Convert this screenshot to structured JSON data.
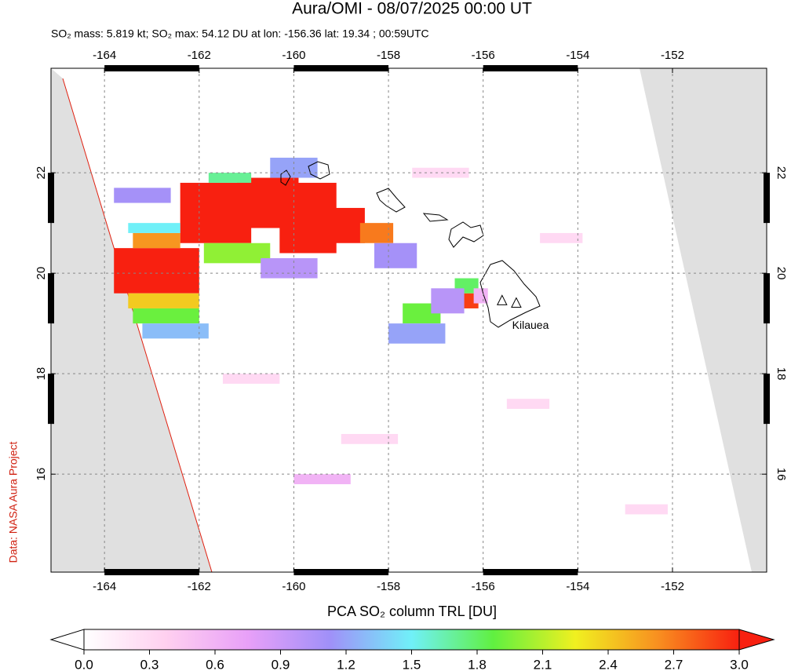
{
  "title": "Aura/OMI - 08/07/2025 00:00 UT",
  "subtitle": "SO₂ mass: 5.819 kt; SO₂ max: 54.12 DU at lon: -156.36 lat: 19.34 ; 00:59UTC",
  "credit": "Data: NASA Aura Project",
  "map": {
    "xlim": [
      -165.13,
      -150.01
    ],
    "ylim": [
      14.05,
      24.08
    ],
    "xticks": [
      -164,
      -162,
      -160,
      -158,
      -156,
      -154,
      -152
    ],
    "yticks": [
      16,
      18,
      20,
      22
    ],
    "grid": true,
    "annotation": {
      "text": "Kilauea",
      "lon": -155.0,
      "lat": 18.95
    },
    "volcanoes": [
      {
        "lon": -155.6,
        "lat": 19.45
      },
      {
        "lon": -155.3,
        "lat": 19.4
      }
    ],
    "cells": [
      [
        -163.8,
        -162.0,
        19.6,
        20.5,
        3.0
      ],
      [
        -162.4,
        -160.9,
        20.6,
        21.8,
        3.0
      ],
      [
        -161.2,
        -159.9,
        20.9,
        21.9,
        3.0
      ],
      [
        -160.3,
        -159.1,
        20.4,
        21.8,
        3.0
      ],
      [
        -159.4,
        -158.5,
        20.6,
        21.3,
        3.0
      ],
      [
        -163.5,
        -162.0,
        19.3,
        19.6,
        2.4
      ],
      [
        -163.4,
        -162.0,
        19.0,
        19.3,
        1.9
      ],
      [
        -163.2,
        -161.8,
        18.7,
        19.0,
        1.3
      ],
      [
        -163.4,
        -162.4,
        20.5,
        20.8,
        2.6
      ],
      [
        -163.5,
        -162.4,
        20.8,
        21.0,
        1.5
      ],
      [
        -161.9,
        -160.5,
        20.2,
        20.6,
        2.0
      ],
      [
        -160.7,
        -159.5,
        19.9,
        20.3,
        1.0
      ],
      [
        -158.6,
        -157.9,
        20.6,
        21.0,
        2.7
      ],
      [
        -158.3,
        -157.4,
        20.1,
        20.6,
        1.1
      ],
      [
        -163.8,
        -162.6,
        21.4,
        21.7,
        1.1
      ],
      [
        -161.8,
        -160.9,
        21.8,
        22.0,
        1.7
      ],
      [
        -160.5,
        -159.5,
        21.9,
        22.3,
        1.2
      ],
      [
        -157.7,
        -156.9,
        19.0,
        19.4,
        1.9
      ],
      [
        -158.0,
        -156.8,
        18.6,
        19.0,
        1.2
      ],
      [
        -156.5,
        -156.1,
        19.3,
        19.6,
        2.9
      ],
      [
        -156.6,
        -156.1,
        19.6,
        19.9,
        1.8
      ],
      [
        -157.1,
        -156.4,
        19.2,
        19.7,
        1.0
      ],
      [
        -156.2,
        -155.9,
        19.4,
        19.7,
        0.6
      ],
      [
        -161.5,
        -160.3,
        17.8,
        18.0,
        0.3
      ],
      [
        -159.0,
        -157.8,
        16.6,
        16.8,
        0.3
      ],
      [
        -157.5,
        -156.3,
        21.9,
        22.1,
        0.3
      ],
      [
        -154.8,
        -153.9,
        20.6,
        20.8,
        0.3
      ],
      [
        -153.0,
        -152.1,
        15.2,
        15.4,
        0.3
      ],
      [
        -160.0,
        -158.8,
        15.8,
        16.0,
        0.6
      ],
      [
        -155.5,
        -154.6,
        17.3,
        17.5,
        0.3
      ]
    ]
  },
  "colorbar": {
    "label": "PCA SO₂ column TRL [DU]",
    "clim": [
      0,
      3
    ],
    "colors": [
      "#ffffff",
      "#ffd0f0",
      "#e8a0f8",
      "#a090f8",
      "#70f0f8",
      "#60f040",
      "#f0f020",
      "#f89020",
      "#f82010"
    ],
    "ticks": [
      {
        "value": 0,
        "label": "0.0"
      },
      {
        "value": 0.3,
        "label": "0.3"
      },
      {
        "value": 0.6,
        "label": "0.6"
      },
      {
        "value": 0.9,
        "label": "0.9"
      },
      {
        "value": 1.2,
        "label": "1.2"
      },
      {
        "value": 1.5,
        "label": "1.5"
      },
      {
        "value": 1.8,
        "label": "1.8"
      },
      {
        "value": 2.1,
        "label": "2.1"
      },
      {
        "value": 2.4,
        "label": "2.4"
      },
      {
        "value": 2.7,
        "label": "2.7"
      },
      {
        "value": 3,
        "label": "3.0"
      }
    ]
  }
}
